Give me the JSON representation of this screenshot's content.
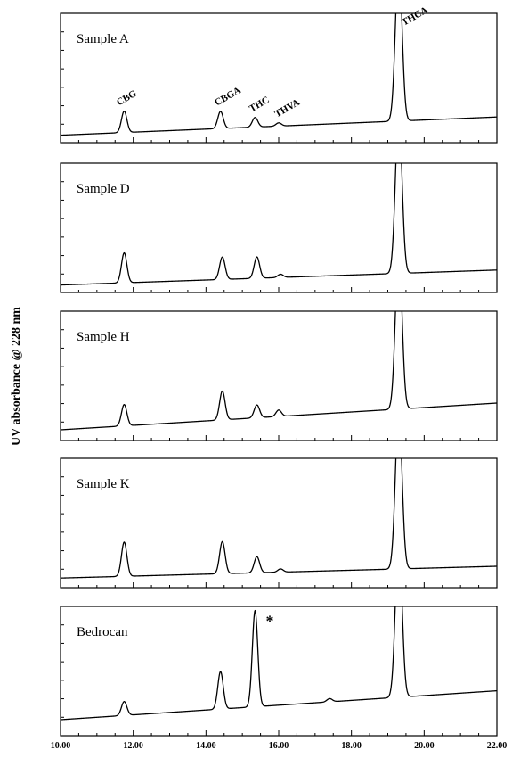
{
  "chart_data": {
    "type": "line",
    "ylabel": "UV absorbance @ 228 nm",
    "xlim": [
      10.0,
      22.0
    ],
    "xticks": [
      "10.00",
      "12.00",
      "14.00",
      "16.00",
      "18.00",
      "20.00",
      "22.00"
    ],
    "grid": false,
    "panels": [
      {
        "label": "Sample A",
        "baseline_start": 0.02,
        "baseline_end": 0.19,
        "peaks": [
          {
            "name": "CBG",
            "rt": 11.75,
            "height": 0.2
          },
          {
            "name": "CBGA",
            "rt": 14.4,
            "height": 0.16
          },
          {
            "name": "THC",
            "rt": 15.35,
            "height": 0.09
          },
          {
            "name": "THVA",
            "rt": 16.0,
            "height": 0.03
          },
          {
            "name": "THCA",
            "rt": 19.3,
            "height": 1.5
          }
        ]
      },
      {
        "label": "Sample D",
        "baseline_start": 0.02,
        "baseline_end": 0.16,
        "peaks": [
          {
            "name": "CBG",
            "rt": 11.75,
            "height": 0.28
          },
          {
            "name": "CBGA",
            "rt": 14.45,
            "height": 0.21
          },
          {
            "name": "THC",
            "rt": 15.4,
            "height": 0.2
          },
          {
            "name": "THVA",
            "rt": 16.05,
            "height": 0.03
          },
          {
            "name": "THCA",
            "rt": 19.3,
            "height": 1.5
          }
        ]
      },
      {
        "label": "Sample H",
        "baseline_start": 0.05,
        "baseline_end": 0.3,
        "peaks": [
          {
            "name": "CBG",
            "rt": 11.75,
            "height": 0.2
          },
          {
            "name": "CBGA",
            "rt": 14.45,
            "height": 0.27
          },
          {
            "name": "THC",
            "rt": 15.4,
            "height": 0.12
          },
          {
            "name": "THVA",
            "rt": 16.0,
            "height": 0.06
          },
          {
            "name": "THCA",
            "rt": 19.3,
            "height": 1.5
          }
        ]
      },
      {
        "label": "Sample K",
        "baseline_start": 0.04,
        "baseline_end": 0.15,
        "peaks": [
          {
            "name": "CBG",
            "rt": 11.75,
            "height": 0.32
          },
          {
            "name": "CBGA",
            "rt": 14.45,
            "height": 0.3
          },
          {
            "name": "THC",
            "rt": 15.4,
            "height": 0.15
          },
          {
            "name": "THVA",
            "rt": 16.05,
            "height": 0.03
          },
          {
            "name": "THCA",
            "rt": 19.3,
            "height": 1.5
          }
        ]
      },
      {
        "label": "Bedrocan",
        "baseline_start": 0.1,
        "baseline_end": 0.37,
        "marker": "*",
        "peaks": [
          {
            "name": "CBG",
            "rt": 11.75,
            "height": 0.13
          },
          {
            "name": "CBGA",
            "rt": 14.4,
            "height": 0.35
          },
          {
            "name": "THC",
            "rt": 15.35,
            "height": 0.9
          },
          {
            "name": "THVA",
            "rt": 17.4,
            "height": 0.03
          },
          {
            "name": "THCA",
            "rt": 19.3,
            "height": 1.5
          }
        ]
      }
    ],
    "annotations": [
      "CBG",
      "CBGA",
      "THC",
      "THVA",
      "THCA",
      "*"
    ]
  }
}
